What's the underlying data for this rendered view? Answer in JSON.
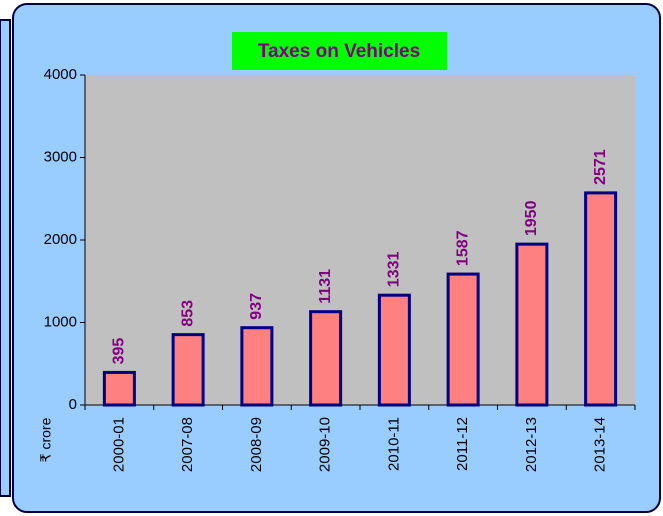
{
  "chart_data": {
    "type": "bar",
    "title": "Taxes on Vehicles",
    "y_label": "₹ crore",
    "categories": [
      "2000-01",
      "2007-08",
      "2008-09",
      "2009-10",
      "2010-11",
      "2011-12",
      "2012-13",
      "2013-14"
    ],
    "values": [
      395,
      853,
      937,
      1131,
      1331,
      1587,
      1950,
      2571
    ],
    "color": "#ff8080",
    "edge_color": "#000080",
    "label_color": "#800080",
    "ylim": [
      0,
      4000
    ],
    "yticks": [
      0,
      1000,
      2000,
      3000,
      4000
    ],
    "grid": false
  }
}
